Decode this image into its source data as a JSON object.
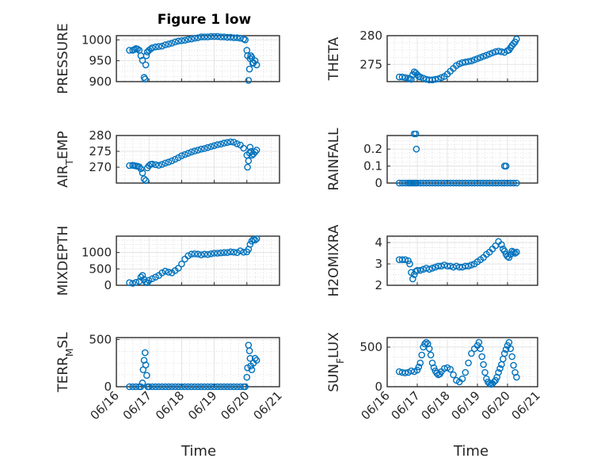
{
  "title": "Figure 1 low",
  "xlabel": "Time",
  "x_ticks": [
    "06/16",
    "06/17",
    "06/18",
    "06/19",
    "06/20",
    "06/21"
  ],
  "marker_color": "#0072BD",
  "chart_data": [
    {
      "type": "scatter",
      "ylabel": "PRESSURE",
      "ylim": [
        900,
        1010
      ],
      "yticks": [
        "900",
        "950",
        "1000"
      ],
      "grid": true,
      "x": [
        0.4,
        0.5,
        0.55,
        0.6,
        0.65,
        0.7,
        0.75,
        0.8,
        0.85,
        0.88,
        0.9,
        0.92,
        0.95,
        1.0,
        1.05,
        1.1,
        1.2,
        1.3,
        1.4,
        1.5,
        1.6,
        1.7,
        1.8,
        1.9,
        2.0,
        2.1,
        2.2,
        2.3,
        2.4,
        2.5,
        2.6,
        2.7,
        2.8,
        2.9,
        3.0,
        3.1,
        3.2,
        3.3,
        3.4,
        3.5,
        3.6,
        3.7,
        3.8,
        3.9,
        3.95,
        4.0,
        4.02,
        4.05,
        4.08,
        4.1,
        4.12,
        4.15,
        4.18,
        4.2,
        4.25,
        4.3
      ],
      "y": [
        975,
        975,
        977,
        979,
        978,
        975,
        962,
        951,
        910,
        906,
        940,
        962,
        971,
        975,
        978,
        981,
        983,
        984,
        985,
        988,
        990,
        992,
        995,
        997,
        998,
        999,
        1001,
        1002,
        1004,
        1005,
        1007,
        1007,
        1007,
        1008,
        1008,
        1008,
        1007,
        1007,
        1006,
        1006,
        1005,
        1005,
        1004,
        1002,
        1000,
        975,
        962,
        903,
        930,
        955,
        962,
        958,
        944,
        945,
        950,
        940
      ]
    },
    {
      "type": "scatter",
      "ylabel": "THETA",
      "ylim": [
        272,
        280
      ],
      "yticks": [
        "275",
        "280"
      ],
      "grid": true,
      "x": [
        0.4,
        0.5,
        0.6,
        0.7,
        0.75,
        0.8,
        0.85,
        0.9,
        0.95,
        1.0,
        1.05,
        1.1,
        1.2,
        1.3,
        1.4,
        1.5,
        1.6,
        1.7,
        1.8,
        1.9,
        2.0,
        2.1,
        2.2,
        2.3,
        2.4,
        2.5,
        2.6,
        2.7,
        2.8,
        2.9,
        3.0,
        3.1,
        3.2,
        3.3,
        3.4,
        3.5,
        3.6,
        3.7,
        3.8,
        3.9,
        4.0,
        4.05,
        4.1,
        4.15,
        4.2,
        4.25,
        4.3
      ],
      "y": [
        272.8,
        272.8,
        272.7,
        272.6,
        272.5,
        272.4,
        273.2,
        273.7,
        273.5,
        273.2,
        272.9,
        272.8,
        272.6,
        272.4,
        272.3,
        272.3,
        272.4,
        272.5,
        272.7,
        272.9,
        273.3,
        273.8,
        274.3,
        274.8,
        275.1,
        275.3,
        275.4,
        275.5,
        275.6,
        275.8,
        276.0,
        276.2,
        276.4,
        276.6,
        276.8,
        277.0,
        277.2,
        277.3,
        277.2,
        277.1,
        277.4,
        277.5,
        277.9,
        278.3,
        278.6,
        278.9,
        279.4
      ]
    },
    {
      "type": "scatter",
      "ylabel": "AIR",
      "ylabel_sub": "T",
      "ylabel_rest": "EMP",
      "ylim": [
        265,
        280
      ],
      "yticks": [
        "270",
        "275",
        "280"
      ],
      "grid": true,
      "x": [
        0.4,
        0.5,
        0.55,
        0.6,
        0.65,
        0.7,
        0.75,
        0.8,
        0.85,
        0.9,
        0.95,
        1.0,
        1.05,
        1.1,
        1.2,
        1.3,
        1.4,
        1.5,
        1.6,
        1.7,
        1.8,
        1.9,
        2.0,
        2.1,
        2.2,
        2.3,
        2.4,
        2.5,
        2.6,
        2.7,
        2.8,
        2.9,
        3.0,
        3.1,
        3.2,
        3.3,
        3.4,
        3.5,
        3.6,
        3.7,
        3.8,
        3.9,
        4.0,
        4.02,
        4.05,
        4.08,
        4.1,
        4.13,
        4.16,
        4.2,
        4.25,
        4.3
      ],
      "y": [
        270.5,
        270.6,
        270.5,
        270.4,
        270.3,
        270.1,
        269.5,
        268.2,
        266.3,
        265.8,
        269.8,
        270.5,
        270.9,
        271.0,
        270.8,
        270.6,
        270.9,
        271.3,
        271.6,
        272.0,
        272.5,
        273.0,
        273.6,
        274.0,
        274.4,
        274.8,
        275.1,
        275.4,
        275.7,
        275.9,
        276.2,
        276.5,
        276.8,
        277.1,
        277.3,
        277.6,
        277.8,
        278.0,
        277.9,
        277.4,
        277.0,
        276.0,
        273.8,
        270.0,
        272.0,
        274.5,
        276.3,
        275.0,
        273.8,
        274.2,
        274.8,
        275.4
      ]
    },
    {
      "type": "scatter",
      "ylabel": "RAINFALL",
      "ylim": [
        0,
        0.28
      ],
      "yticks": [
        "0",
        "0.1",
        "0.2"
      ],
      "grid": true,
      "x": [
        0.4,
        0.5,
        0.6,
        0.7,
        0.75,
        0.8,
        0.85,
        0.9,
        0.95,
        1.0,
        1.1,
        1.2,
        1.3,
        1.4,
        1.5,
        1.6,
        1.7,
        1.8,
        1.9,
        2.0,
        2.1,
        2.2,
        2.3,
        2.4,
        2.5,
        2.6,
        2.7,
        2.8,
        2.9,
        3.0,
        3.1,
        3.2,
        3.3,
        3.4,
        3.5,
        3.6,
        3.7,
        3.8,
        3.9,
        4.0,
        4.1,
        4.2,
        4.3,
        0.9,
        0.95,
        0.97,
        3.9,
        3.95
      ],
      "y": [
        0,
        0,
        0,
        0,
        0,
        0,
        0,
        0,
        0,
        0,
        0,
        0,
        0,
        0,
        0,
        0,
        0,
        0,
        0,
        0,
        0,
        0,
        0,
        0,
        0,
        0,
        0,
        0,
        0,
        0,
        0,
        0,
        0,
        0,
        0,
        0,
        0,
        0,
        0,
        0,
        0,
        0,
        0,
        0.29,
        0.29,
        0.2,
        0.1,
        0.1
      ]
    },
    {
      "type": "scatter",
      "ylabel": "MIXDEPTH",
      "ylim": [
        0,
        1500
      ],
      "yticks": [
        "0",
        "500",
        "1000"
      ],
      "grid": true,
      "x": [
        0.4,
        0.5,
        0.6,
        0.7,
        0.75,
        0.8,
        0.85,
        0.9,
        0.95,
        1.0,
        1.1,
        1.2,
        1.3,
        1.4,
        1.5,
        1.6,
        1.7,
        1.8,
        1.9,
        2.0,
        2.1,
        2.2,
        2.3,
        2.4,
        2.5,
        2.6,
        2.7,
        2.8,
        2.9,
        3.0,
        3.1,
        3.2,
        3.3,
        3.4,
        3.5,
        3.6,
        3.7,
        3.8,
        3.9,
        4.0,
        4.05,
        4.1,
        4.15,
        4.2,
        4.25,
        4.3
      ],
      "y": [
        80,
        60,
        90,
        120,
        250,
        300,
        180,
        100,
        80,
        150,
        200,
        250,
        300,
        380,
        430,
        400,
        380,
        450,
        520,
        650,
        800,
        900,
        950,
        960,
        950,
        930,
        950,
        940,
        960,
        980,
        980,
        990,
        1000,
        1000,
        1020,
        1010,
        1000,
        1050,
        1010,
        1020,
        1100,
        1250,
        1350,
        1400,
        1380,
        1420
      ]
    },
    {
      "type": "scatter",
      "ylabel": "H2OMIXRA",
      "ylim": [
        2,
        4.3
      ],
      "yticks": [
        "2",
        "3",
        "4"
      ],
      "grid": true,
      "x": [
        0.4,
        0.5,
        0.6,
        0.7,
        0.75,
        0.8,
        0.85,
        0.9,
        0.95,
        1.0,
        1.1,
        1.2,
        1.3,
        1.4,
        1.5,
        1.6,
        1.7,
        1.8,
        1.9,
        2.0,
        2.1,
        2.2,
        2.3,
        2.4,
        2.5,
        2.6,
        2.7,
        2.8,
        2.9,
        3.0,
        3.1,
        3.2,
        3.3,
        3.4,
        3.5,
        3.6,
        3.7,
        3.8,
        3.85,
        3.9,
        3.95,
        4.0,
        4.05,
        4.1,
        4.15,
        4.2,
        4.25,
        4.3
      ],
      "y": [
        3.2,
        3.2,
        3.2,
        3.15,
        3.0,
        2.6,
        2.3,
        2.5,
        2.65,
        2.7,
        2.7,
        2.75,
        2.8,
        2.75,
        2.8,
        2.85,
        2.9,
        2.9,
        2.95,
        2.9,
        2.9,
        2.85,
        2.9,
        2.85,
        2.85,
        2.9,
        2.9,
        2.95,
        3.0,
        3.1,
        3.2,
        3.3,
        3.45,
        3.55,
        3.7,
        3.85,
        4.05,
        3.9,
        3.7,
        3.6,
        3.45,
        3.35,
        3.3,
        3.45,
        3.6,
        3.55,
        3.5,
        3.55
      ]
    },
    {
      "type": "scatter",
      "ylabel": "TERR",
      "ylabel_sub": "M",
      "ylabel_rest": "SL",
      "ylim": [
        0,
        520
      ],
      "yticks": [
        "0",
        "500"
      ],
      "grid": true,
      "x": [
        0.4,
        0.5,
        0.6,
        0.7,
        0.75,
        0.8,
        0.82,
        0.85,
        0.88,
        0.9,
        0.93,
        0.96,
        1.0,
        1.1,
        1.2,
        1.3,
        1.4,
        1.5,
        1.6,
        1.7,
        1.8,
        1.9,
        2.0,
        2.1,
        2.2,
        2.3,
        2.4,
        2.5,
        2.6,
        2.7,
        2.8,
        2.9,
        3.0,
        3.1,
        3.2,
        3.3,
        3.4,
        3.5,
        3.6,
        3.7,
        3.8,
        3.9,
        3.95,
        4.0,
        4.02,
        4.05,
        4.08,
        4.1,
        4.12,
        4.15,
        4.2,
        4.25,
        4.3
      ],
      "y": [
        0,
        0,
        0,
        0,
        0,
        40,
        180,
        280,
        360,
        230,
        120,
        0,
        0,
        0,
        0,
        0,
        0,
        0,
        0,
        0,
        0,
        0,
        0,
        0,
        0,
        0,
        0,
        0,
        0,
        0,
        0,
        0,
        0,
        0,
        0,
        0,
        0,
        0,
        0,
        0,
        0,
        0,
        0,
        100,
        200,
        440,
        380,
        300,
        220,
        180,
        250,
        300,
        280
      ]
    },
    {
      "type": "scatter",
      "ylabel": "SUN",
      "ylabel_sub": "F",
      "ylabel_rest": "LUX",
      "ylim": [
        0,
        620
      ],
      "yticks": [
        "0",
        "500"
      ],
      "grid": true,
      "x": [
        0.4,
        0.5,
        0.6,
        0.7,
        0.8,
        0.9,
        1.0,
        1.05,
        1.1,
        1.15,
        1.2,
        1.25,
        1.3,
        1.35,
        1.4,
        1.45,
        1.5,
        1.55,
        1.6,
        1.65,
        1.7,
        1.75,
        1.8,
        1.9,
        2.0,
        2.1,
        2.2,
        2.3,
        2.4,
        2.5,
        2.6,
        2.7,
        2.8,
        2.9,
        3.0,
        3.05,
        3.1,
        3.15,
        3.2,
        3.25,
        3.3,
        3.35,
        3.4,
        3.45,
        3.5,
        3.55,
        3.6,
        3.65,
        3.7,
        3.75,
        3.8,
        3.85,
        3.9,
        3.95,
        4.0,
        4.05,
        4.1,
        4.15,
        4.2,
        4.25,
        4.3
      ],
      "y": [
        190,
        180,
        175,
        180,
        200,
        190,
        210,
        250,
        300,
        400,
        500,
        540,
        560,
        540,
        480,
        400,
        300,
        240,
        200,
        170,
        150,
        160,
        190,
        230,
        240,
        220,
        150,
        80,
        60,
        100,
        180,
        300,
        420,
        480,
        520,
        560,
        480,
        380,
        280,
        180,
        100,
        60,
        40,
        30,
        40,
        60,
        80,
        120,
        180,
        230,
        280,
        350,
        420,
        470,
        520,
        560,
        480,
        380,
        270,
        180,
        120
      ]
    }
  ]
}
